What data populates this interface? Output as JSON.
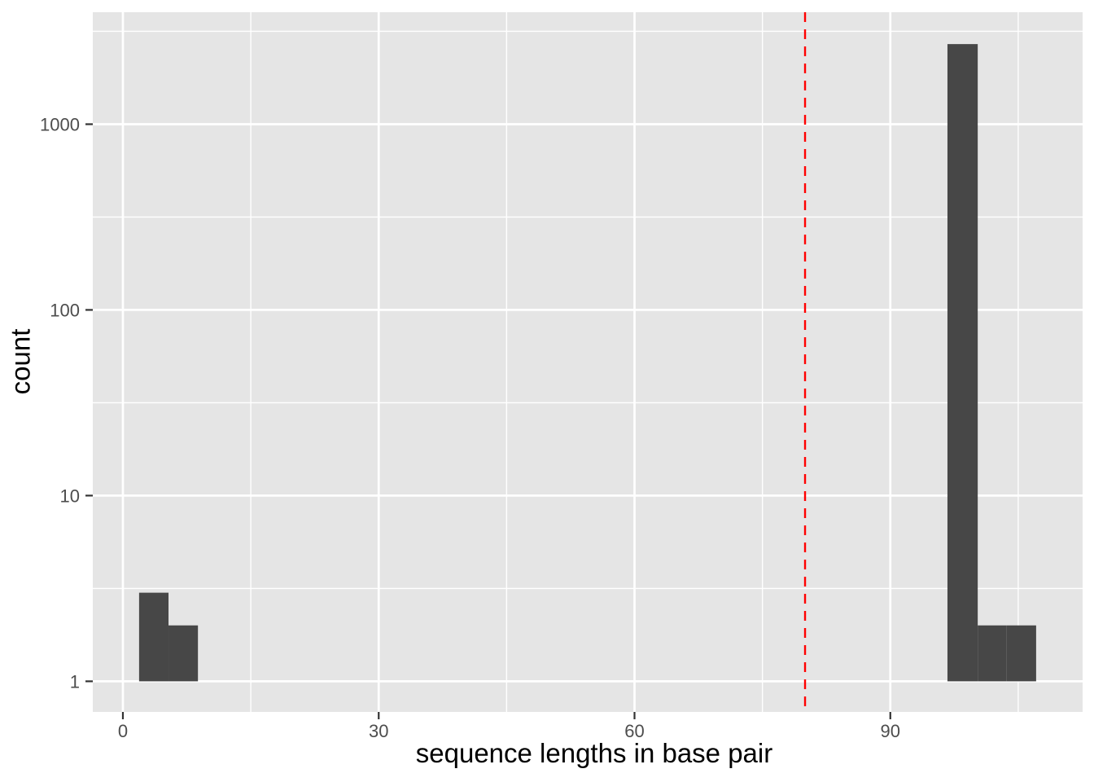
{
  "chart_data": {
    "type": "bar",
    "subtype": "histogram-log-y",
    "title": "",
    "xlabel": "sequence lengths in base pair",
    "ylabel": "count",
    "y_scale": "log10",
    "bins": [
      {
        "x0": 1.9,
        "x1": 5.35,
        "count": 3
      },
      {
        "x0": 5.35,
        "x1": 8.8,
        "count": 2
      },
      {
        "x0": 96.7,
        "x1": 100.25,
        "count": 2700
      },
      {
        "x0": 100.25,
        "x1": 103.65,
        "count": 2
      },
      {
        "x0": 103.65,
        "x1": 107.1,
        "count": 2
      }
    ],
    "vline": {
      "x": 80,
      "color": "#FF0000",
      "style": "dashed"
    },
    "x_ticks": [
      0,
      30,
      60,
      90
    ],
    "x_tick_labels": [
      "0",
      "30",
      "60",
      "90"
    ],
    "x_minor_ticks": [
      15,
      45,
      75,
      105
    ],
    "y_ticks": [
      1,
      10,
      100,
      1000
    ],
    "y_tick_labels": [
      "1",
      "10",
      "100",
      "1000"
    ],
    "y_minor_log": [
      0.5,
      1.5,
      2.5,
      3.5
    ],
    "xlim": [
      -3.53,
      112.55
    ],
    "ylim_log": [
      -0.165,
      3.603
    ],
    "grid": "on",
    "legend": "none",
    "colors": {
      "panel_background": "#E5E5E5",
      "bar_fill": "#474747",
      "gridline": "#FFFFFF",
      "tick_label_text": "#4D4D4D",
      "axis_title_text": "#000000",
      "tick_mark": "#333333",
      "vline": "#FF0000"
    }
  }
}
